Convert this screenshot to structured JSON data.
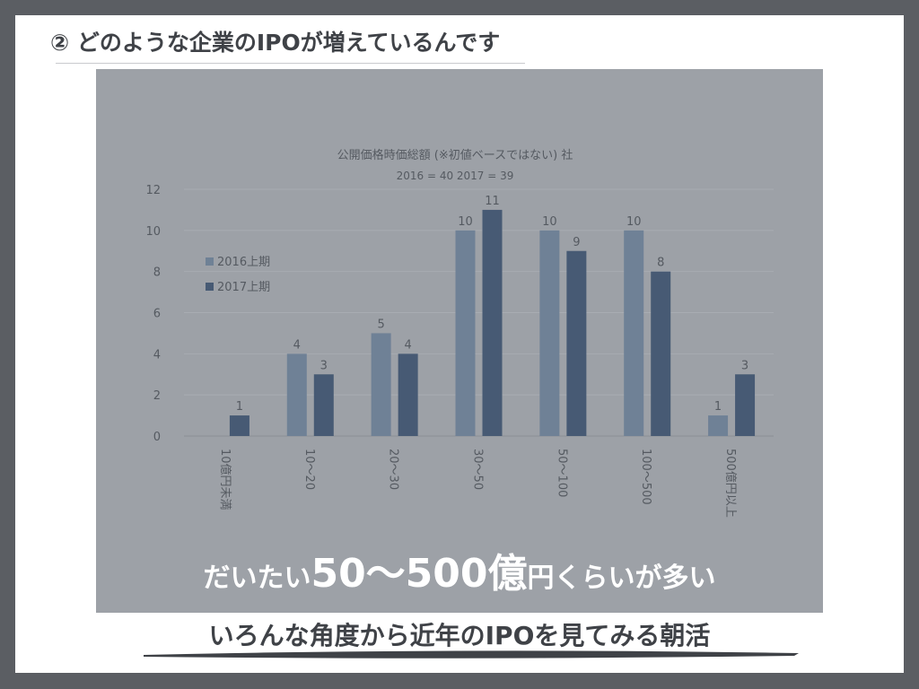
{
  "slide": {
    "heading": "② どのような企業のIPOが増えているんです",
    "overlay_prefix": "だいたい",
    "overlay_emphasis": "50〜500億",
    "overlay_suffix": "円くらいが多い",
    "footer": "いろんな角度から近年のIPOを見てみる朝活"
  },
  "chart_data": {
    "type": "bar",
    "title": "公開価格時価総額  (※初値ベースではない)  社",
    "subtitle": "2016 = 40  2017 = 39",
    "categories": [
      "10億円未満",
      "10〜20",
      "20〜30",
      "30〜50",
      "50〜100",
      "100〜500",
      "500億円以上"
    ],
    "series": [
      {
        "name": "2016上期",
        "values": [
          0,
          4,
          5,
          10,
          10,
          10,
          1
        ],
        "color": "#6f8196"
      },
      {
        "name": "2017上期",
        "values": [
          1,
          3,
          4,
          11,
          9,
          8,
          3
        ],
        "color": "#475a74"
      }
    ],
    "ylim": [
      0,
      12
    ],
    "yticks": [
      0,
      2,
      4,
      6,
      8,
      10,
      12
    ],
    "grid": true,
    "legend": "left"
  }
}
